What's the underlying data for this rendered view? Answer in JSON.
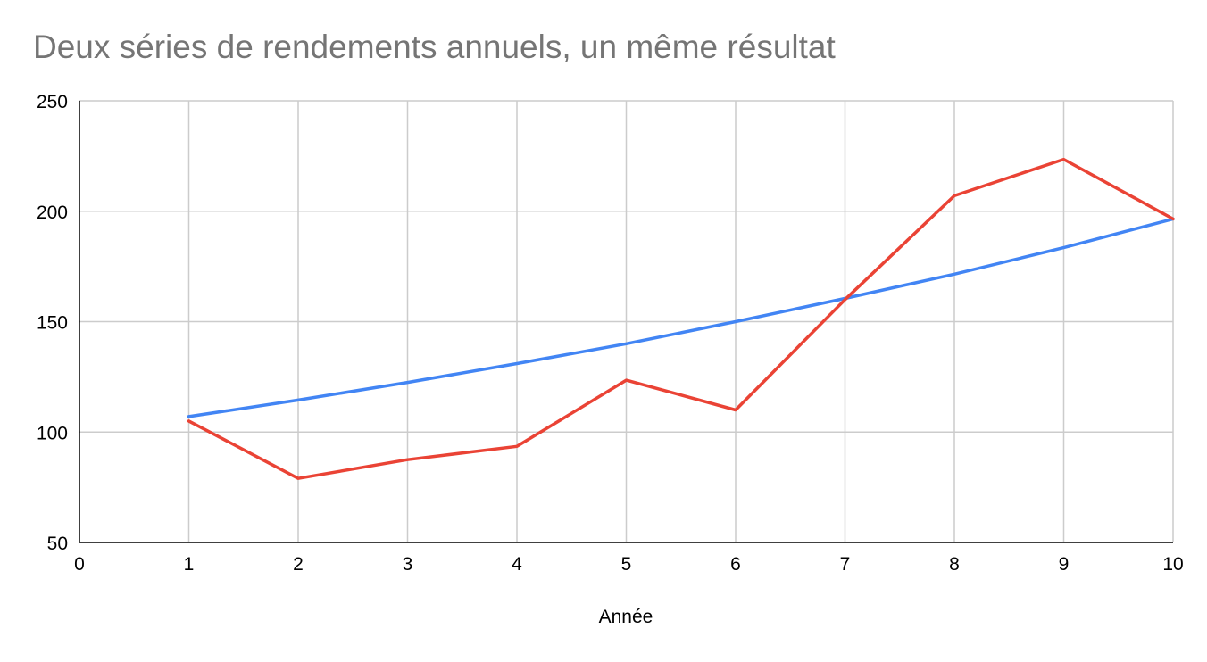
{
  "chart_data": {
    "type": "line",
    "title": "Deux séries de rendements annuels, un même résultat",
    "xlabel": "Année",
    "ylabel": "",
    "xlim": [
      0,
      10
    ],
    "ylim": [
      50,
      250
    ],
    "x_ticks": [
      0,
      1,
      2,
      3,
      4,
      5,
      6,
      7,
      8,
      9,
      10
    ],
    "y_ticks": [
      50,
      100,
      150,
      200,
      250
    ],
    "grid": true,
    "legend": "none",
    "colors": {
      "grid": "#cccccc",
      "axis": "#000000",
      "title": "#757575"
    },
    "series": [
      {
        "color": "#4285f4",
        "x": [
          1,
          2,
          3,
          4,
          5,
          6,
          7,
          8,
          9,
          10
        ],
        "values": [
          107,
          114.5,
          122.5,
          131,
          140,
          150,
          160.5,
          171.5,
          183.5,
          196.5
        ]
      },
      {
        "color": "#ea4335",
        "x": [
          1,
          2,
          3,
          4,
          5,
          6,
          7,
          8,
          9,
          10
        ],
        "values": [
          105,
          79,
          87.5,
          93.5,
          123.5,
          110,
          160,
          207,
          223.5,
          196.5
        ]
      }
    ]
  }
}
